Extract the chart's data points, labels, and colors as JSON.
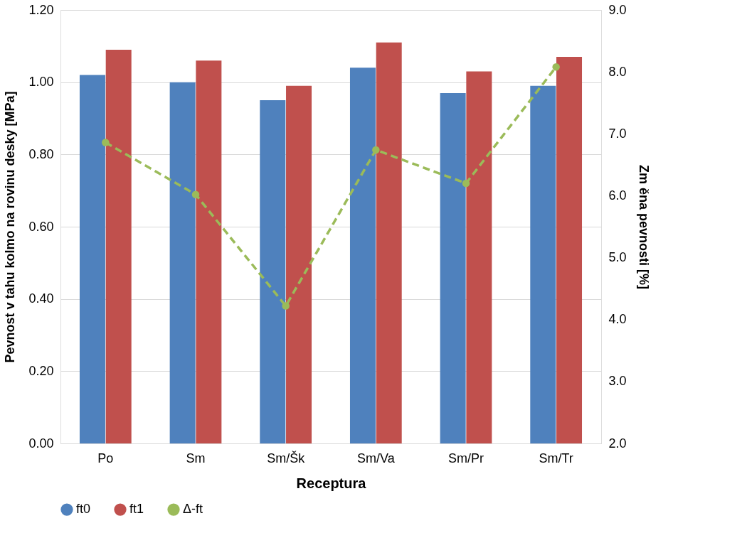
{
  "chart_data": {
    "type": "bar",
    "xlabel": "Receptura",
    "ylabel": "Pevnost v tahu kolmo na rovinu desky [MPa]",
    "y2label": "Zm ěna pevnosti [%]",
    "categories": [
      "Po",
      "Sm",
      "Sm/Šk",
      "Sm/Va",
      "Sm/Pr",
      "Sm/Tr"
    ],
    "series": [
      {
        "name": "ft0",
        "color": "#4f81bd",
        "values": [
          1.02,
          1.0,
          0.95,
          1.04,
          0.97,
          0.99
        ]
      },
      {
        "name": "ft1",
        "color": "#c0504d",
        "values": [
          1.09,
          1.06,
          0.99,
          1.11,
          1.03,
          1.07
        ]
      },
      {
        "name": "Δ-ft",
        "type": "line",
        "axis": "y2",
        "color": "#9bbb59",
        "marker": "circle",
        "line_style": "dashed",
        "values": [
          6.86,
          6.02,
          4.22,
          6.74,
          6.2,
          8.08
        ]
      }
    ],
    "ylim": [
      0,
      1.2
    ],
    "yticks": [
      {
        "value": 0,
        "label": "0.00"
      },
      {
        "value": 0.2,
        "label": "0.20"
      },
      {
        "value": 0.4,
        "label": "0.40"
      },
      {
        "value": 0.6,
        "label": "0.60"
      },
      {
        "value": 0.8,
        "label": "0.80"
      },
      {
        "value": 1.0,
        "label": "1.00"
      },
      {
        "value": 1.2,
        "label": "1.20"
      }
    ],
    "y2lim": [
      2,
      9
    ],
    "y2ticks": [
      {
        "value": 2,
        "label": "2.0"
      },
      {
        "value": 3,
        "label": "3.0"
      },
      {
        "value": 4,
        "label": "4.0"
      },
      {
        "value": 5,
        "label": "5.0"
      },
      {
        "value": 6,
        "label": "6.0"
      },
      {
        "value": 7,
        "label": "7.0"
      },
      {
        "value": 8,
        "label": "8.0"
      },
      {
        "value": 9,
        "label": "9.0"
      }
    ],
    "grid": "y",
    "legend": "bottom"
  }
}
